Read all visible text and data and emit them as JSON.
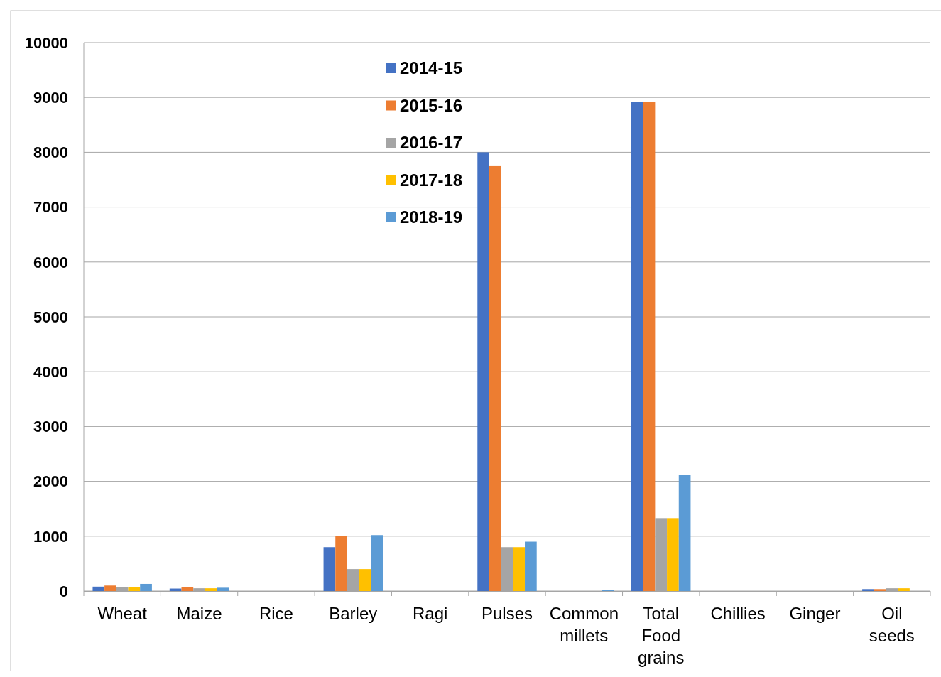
{
  "chart_data": {
    "type": "bar",
    "categories": [
      "Wheat",
      "Maize",
      "Rice",
      "Barley",
      "Ragi",
      "Pulses",
      "Common millets",
      "Total Food grains",
      "Chillies",
      "Ginger",
      "Oil seeds"
    ],
    "series": [
      {
        "name": "2014-15",
        "color": "#4472c4",
        "values": [
          80,
          45,
          0,
          800,
          0,
          8000,
          0,
          8920,
          0,
          0,
          35
        ]
      },
      {
        "name": "2015-16",
        "color": "#ed7d31",
        "values": [
          100,
          65,
          0,
          1000,
          0,
          7760,
          0,
          8920,
          0,
          0,
          35
        ]
      },
      {
        "name": "2016-17",
        "color": "#a5a5a5",
        "values": [
          75,
          50,
          0,
          400,
          0,
          800,
          0,
          1330,
          0,
          0,
          50
        ]
      },
      {
        "name": "2017-18",
        "color": "#ffc000",
        "values": [
          75,
          50,
          0,
          400,
          0,
          800,
          0,
          1330,
          0,
          0,
          50
        ]
      },
      {
        "name": "2018-19",
        "color": "#5b9bd5",
        "values": [
          130,
          60,
          0,
          1020,
          0,
          900,
          20,
          2120,
          null,
          0,
          0
        ]
      }
    ],
    "ylim": [
      0,
      10000
    ],
    "yticks": [
      0,
      1000,
      2000,
      3000,
      4000,
      5000,
      6000,
      7000,
      8000,
      9000,
      10000
    ],
    "grid": "y",
    "legend": "top"
  }
}
